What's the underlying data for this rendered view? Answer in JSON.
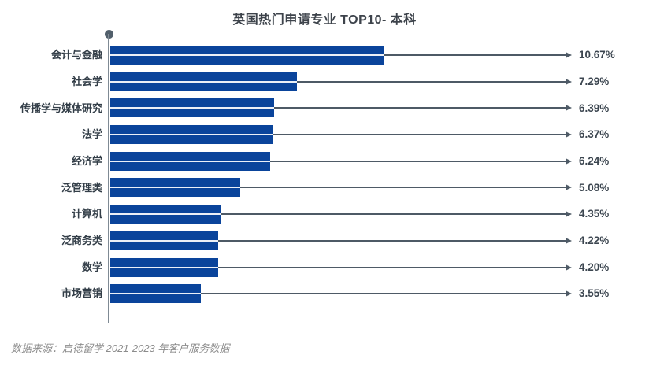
{
  "chart_data": {
    "type": "bar",
    "orientation": "horizontal",
    "title": "英国热门申请专业 TOP10- 本科",
    "categories": [
      "会计与金融",
      "社会学",
      "传播学与媒体研究",
      "法学",
      "经济学",
      "泛管理类",
      "计算机",
      "泛商务类",
      "数学",
      "市场营销"
    ],
    "values": [
      10.67,
      7.29,
      6.39,
      6.37,
      6.24,
      5.08,
      4.35,
      4.22,
      4.2,
      3.55
    ],
    "value_labels": [
      "10.67%",
      "7.29%",
      "6.39%",
      "6.37%",
      "6.24%",
      "5.08%",
      "4.35%",
      "4.22%",
      "4.20%",
      "3.55%"
    ],
    "xlim": [
      0,
      11
    ],
    "grid": false,
    "legend": false,
    "bar_color": "#0a449b",
    "leader_line_color": "#4e5a66",
    "axis_color": "#7f8a94",
    "label_color": "#333e48"
  },
  "footer": {
    "source_note": "数据来源：启德留学 2021-2023 年客户服务数据"
  }
}
